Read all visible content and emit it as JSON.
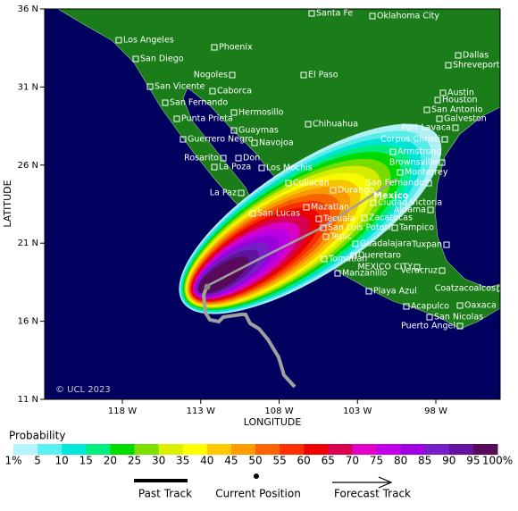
{
  "map": {
    "axes": {
      "x_label": "LONGITUDE",
      "y_label": "LATITUDE",
      "xticks": [
        {
          "value": -118,
          "label": "118 W"
        },
        {
          "value": -113,
          "label": "113 W"
        },
        {
          "value": -108,
          "label": "108 W"
        },
        {
          "value": -103,
          "label": "103 W"
        },
        {
          "value": -98,
          "label": "98 W"
        }
      ],
      "yticks": [
        {
          "value": 36,
          "label": "36 N"
        },
        {
          "value": 31,
          "label": "31 N"
        },
        {
          "value": 26,
          "label": "26 N"
        },
        {
          "value": 21,
          "label": "21 N"
        },
        {
          "value": 16,
          "label": "16 N"
        },
        {
          "value": 11,
          "label": "11 N"
        }
      ]
    },
    "copyright": "© UCL 2023",
    "country_label": "Mexico",
    "cities": [
      "Santa Fe",
      "Oklahoma City",
      "Los Angeles",
      "Phoenix",
      "Dallas",
      "Shreveport",
      "San Diego",
      "Nogoles",
      "El Paso",
      "San Vicente",
      "Caborca",
      "Austin",
      "Houston",
      "San Fernando",
      "San Antonio",
      "Hermosillo",
      "Punta Prieta",
      "Chihuahua",
      "Galveston",
      "Port Lavaca",
      "Guaymas",
      "Guerrero Negro",
      "Navojoa",
      "Corpus Christi",
      "Armstrong",
      "Rosarito",
      "Don",
      "Brownsville",
      "La Poza",
      "Los Mochis",
      "Monterrey",
      "Culiacan",
      "San Fernando",
      "Durango",
      "La Paz",
      "Ciudad Victoria",
      "Mazatlan",
      "Aldama",
      "San Lucas",
      "Zacatecas",
      "Tecuala",
      "Tampico",
      "San Luis Potosi",
      "Tepic",
      "Guadalajara",
      "Tuxpan",
      "Queretaro",
      "Tomatlan",
      "MEXICO CITY",
      "Manzanillo",
      "Veracruz",
      "Playa Azul",
      "Coatzacoalcos",
      "Acapulco",
      "Oaxaca",
      "San Nicolas",
      "Puerto Angel"
    ],
    "legend": {
      "title": "Probability",
      "labels": [
        "1%",
        "5",
        "10",
        "15",
        "20",
        "25",
        "30",
        "35",
        "40",
        "45",
        "50",
        "55",
        "60",
        "65",
        "70",
        "75",
        "80",
        "85",
        "90",
        "95",
        "100%"
      ],
      "colors": [
        "#b4f4ff",
        "#5af0f0",
        "#00e8dc",
        "#00f080",
        "#00dc00",
        "#7ce000",
        "#dcf000",
        "#ffff00",
        "#ffc800",
        "#ff9c00",
        "#ff6400",
        "#ff3000",
        "#f00000",
        "#dc0050",
        "#e000c8",
        "#c000e8",
        "#a000e0",
        "#7820c8",
        "#6414a0",
        "#5a0a5a"
      ]
    },
    "track_legend": [
      "Past Track",
      "Current Position",
      "Forecast Track"
    ]
  }
}
